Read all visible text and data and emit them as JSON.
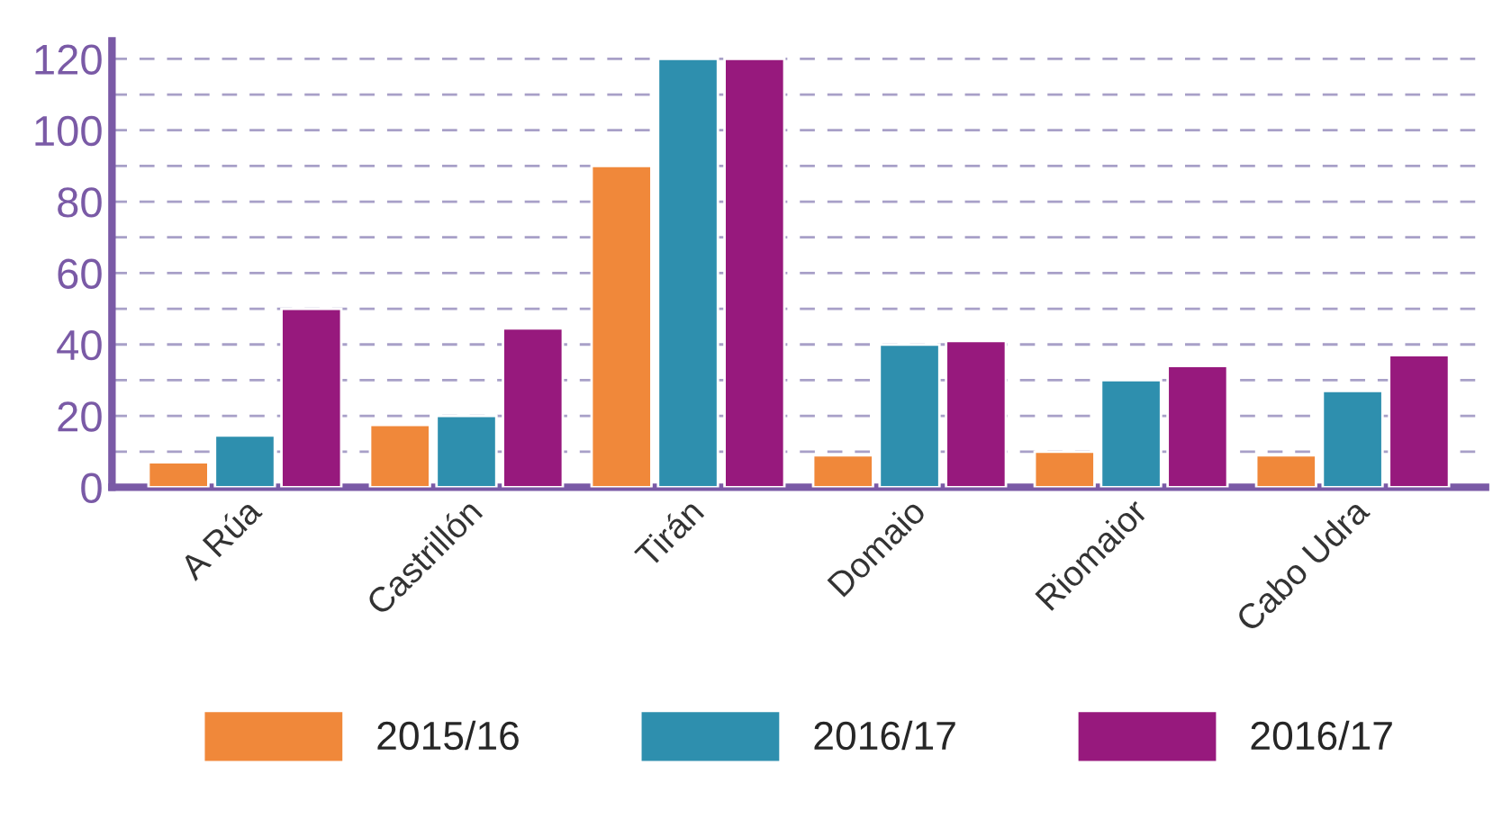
{
  "chart_data": {
    "type": "bar",
    "categories": [
      "A Rúa",
      "Castrillón",
      "Tirán",
      "Domaio",
      "Riomaior",
      "Cabo Udra"
    ],
    "series": [
      {
        "name": "2015/16",
        "color": "#f0883a",
        "values": [
          7,
          17.5,
          90,
          9,
          10,
          9
        ]
      },
      {
        "name": "2016/17",
        "color": "#2e8fae",
        "values": [
          14.5,
          20,
          120,
          40,
          30,
          27
        ]
      },
      {
        "name": "2016/17",
        "color": "#97197d",
        "values": [
          50,
          44.5,
          120,
          41,
          34,
          37
        ]
      }
    ],
    "ylim": [
      0,
      125
    ],
    "yticks": [
      0,
      {
        "value": 10,
        "label": null
      },
      20,
      {
        "value": 30,
        "label": null
      },
      40,
      {
        "value": 50,
        "label": null
      },
      60,
      {
        "value": 70,
        "label": null
      },
      80,
      {
        "value": 90,
        "label": null
      },
      100,
      {
        "value": 110,
        "label": null
      },
      120
    ],
    "grid": "y",
    "legend": "bottom"
  }
}
